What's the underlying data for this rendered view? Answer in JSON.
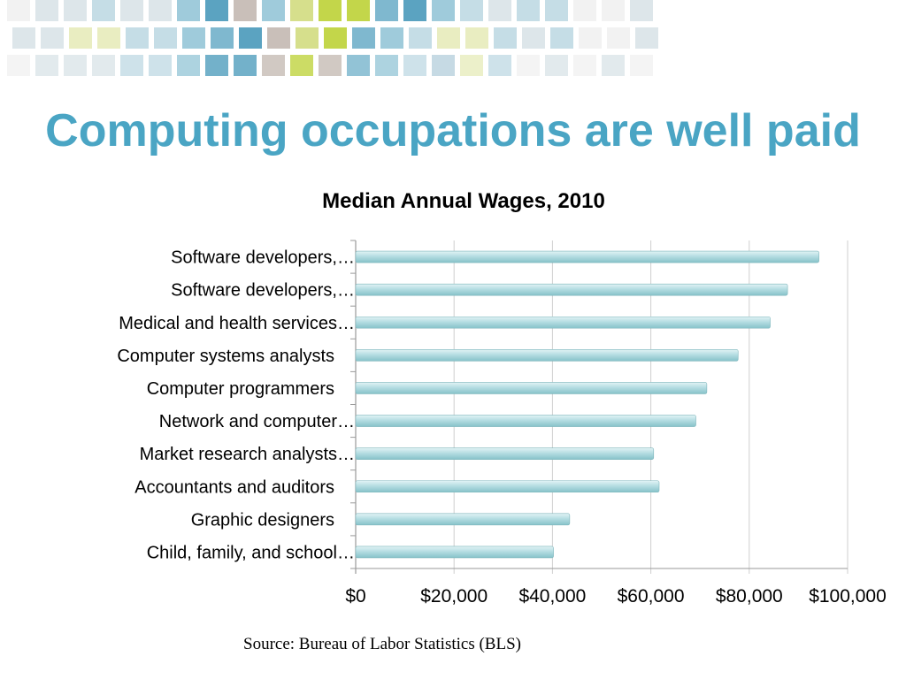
{
  "slide": {
    "title": "Computing occupations are well paid",
    "source": "Source: Bureau of Labor Statistics  (BLS)"
  },
  "banner": {
    "colors": [
      "#f2f2f2",
      "#dde6ea",
      "#c5dde6",
      "#9fcbdb",
      "#7fb8cf",
      "#5ba3c1",
      "#d6df8c",
      "#c3d64a",
      "#c9bfb9",
      "#e9edc1",
      "#bcd4df"
    ]
  },
  "colors": {
    "title": "#4aa5c4",
    "bar_fill_light": "#d3ecef",
    "bar_fill_dark": "#8ac6cc",
    "grid": "#cfcfcf",
    "axis": "#9a9a9a"
  },
  "chart_data": {
    "type": "bar",
    "orientation": "horizontal",
    "title": "Median Annual Wages, 2010",
    "xlabel": "",
    "ylabel": "",
    "categories": [
      "Software developers,…",
      "Software developers,…",
      "Medical and health services…",
      "Computer systems analysts",
      "Computer programmers",
      "Network and computer…",
      "Market research analysts…",
      "Accountants and auditors",
      "Graphic designers",
      "Child, family, and school…"
    ],
    "values": [
      94180,
      87790,
      84270,
      77740,
      71380,
      69160,
      60570,
      61690,
      43500,
      40210
    ],
    "xlim": [
      0,
      100000
    ],
    "ticks": [
      0,
      20000,
      40000,
      60000,
      80000,
      100000
    ],
    "tick_labels": [
      "$0",
      "$20,000",
      "$40,000",
      "$60,000",
      "$80,000",
      "$100,000"
    ],
    "grid": true,
    "legend": "none"
  }
}
